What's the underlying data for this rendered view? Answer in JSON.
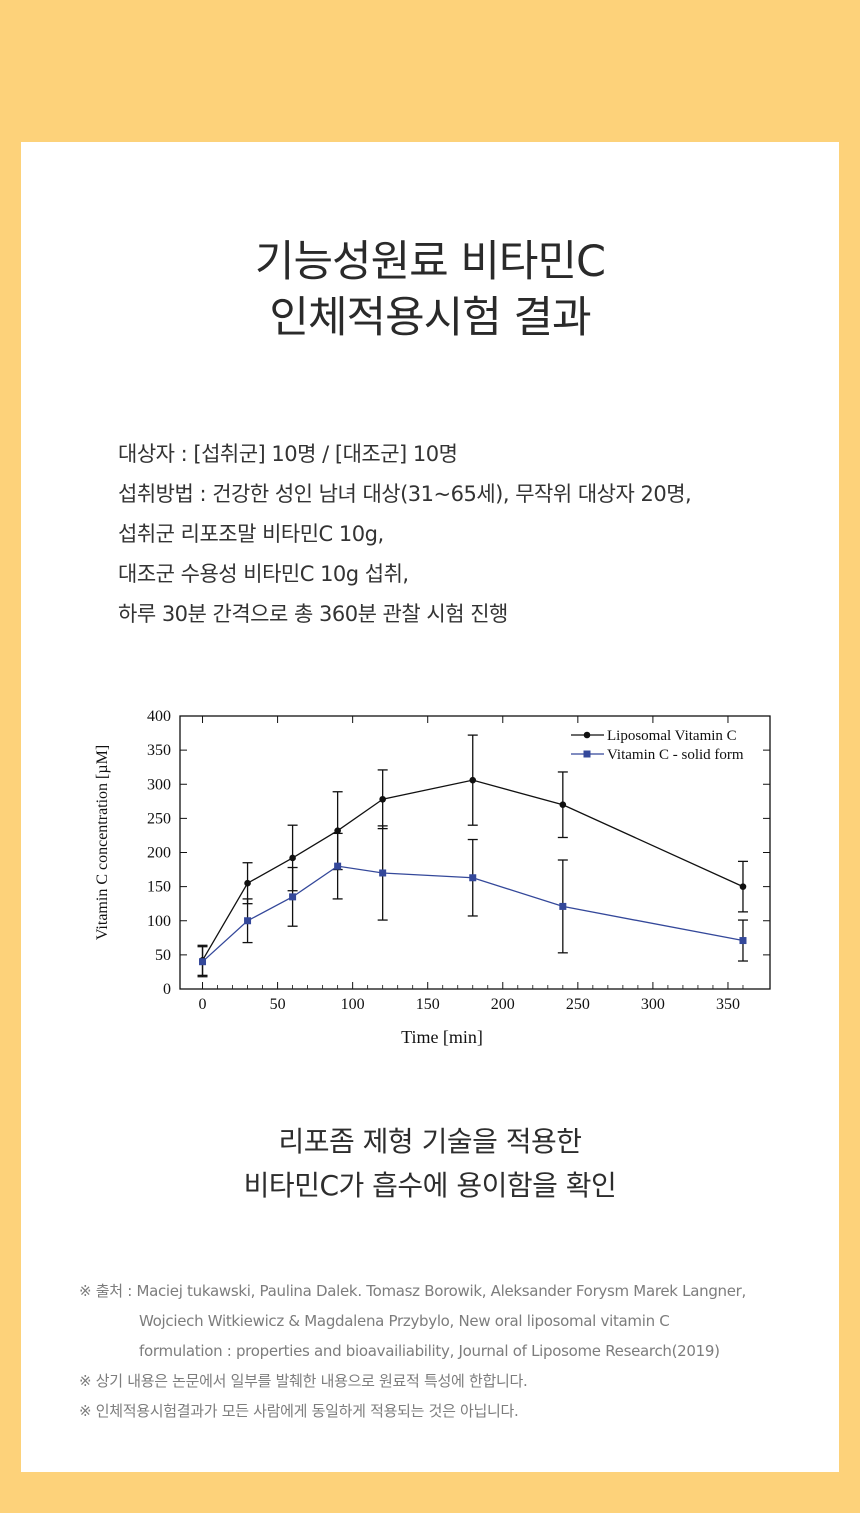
{
  "title": {
    "line1": "기능성원료 비타민C",
    "line2": "인체적용시험 결과"
  },
  "info": {
    "lines": [
      "대상자 : [섭취군] 10명 / [대조군] 10명",
      "섭취방법 : 건강한 성인 남녀 대상(31~65세), 무작위 대상자 20명,",
      "섭취군 리포조말 비타민C 10g,",
      "대조군 수용성 비타민C 10g 섭취,",
      "하루 30분 간격으로 총 360분 관찰 시험 진행"
    ]
  },
  "chart_data": {
    "type": "line",
    "xlabel": "Time [min]",
    "ylabel": "Vitamin C concentration [µM]",
    "xlim": [
      -15,
      378
    ],
    "ylim": [
      0,
      400
    ],
    "x_ticks": [
      0,
      50,
      100,
      150,
      200,
      250,
      300,
      350
    ],
    "y_ticks": [
      0,
      50,
      100,
      150,
      200,
      250,
      300,
      350,
      400
    ],
    "legend_position": "top-right",
    "grid": false,
    "series": [
      {
        "name": "Liposomal Vitamin C",
        "color": "#111111",
        "marker": "circle",
        "x": [
          0,
          30,
          60,
          90,
          120,
          180,
          240,
          360
        ],
        "y": [
          42,
          155,
          192,
          232,
          278,
          306,
          270,
          150
        ],
        "err": [
          22,
          30,
          48,
          57,
          43,
          66,
          48,
          37
        ]
      },
      {
        "name": "Vitamin C - solid form",
        "color": "#34489a",
        "marker": "square",
        "x": [
          0,
          30,
          60,
          90,
          120,
          180,
          240,
          360
        ],
        "y": [
          40,
          100,
          135,
          180,
          170,
          163,
          121,
          71
        ],
        "err": [
          22,
          32,
          43,
          48,
          69,
          56,
          68,
          30
        ]
      }
    ]
  },
  "summary": {
    "line1": "리포좀 제형 기술을 적용한",
    "line2": "비타민C가 흡수에 용이함을 확인"
  },
  "references": {
    "source_prefix": "※ 출처 : ",
    "source_lines": [
      "Maciej tukawski, Paulina Dalek. Tomasz Borowik, Aleksander Forysm Marek Langner,",
      "Wojciech Witkiewicz & Magdalena Przybylo, New oral liposomal vitamin C",
      "formulation : properties and bioavailiability, Journal of Liposome Research(2019)"
    ],
    "note1": "※ 상기 내용은 논문에서 일부를 발췌한 내용으로 원료적 특성에 한합니다.",
    "note2": "※ 인체적용시험결과가 모든 사람에게 동일하게 적용되는 것은 아닙니다."
  }
}
